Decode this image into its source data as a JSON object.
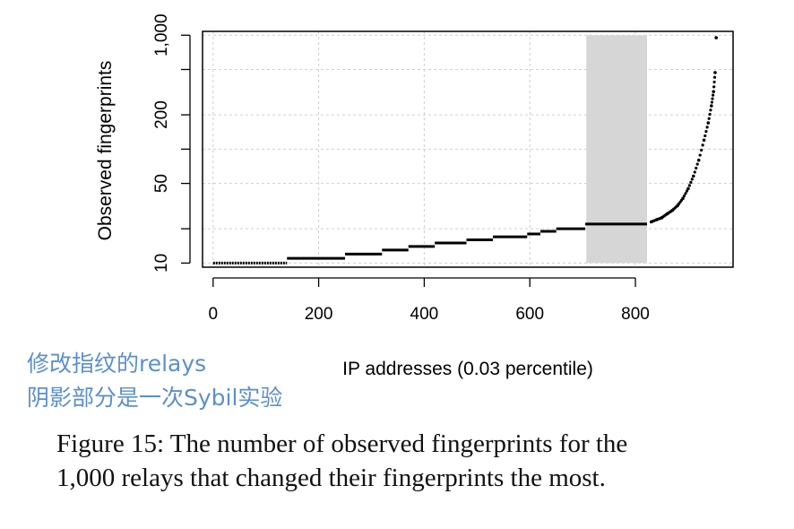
{
  "chart_data": {
    "type": "scatter",
    "xlabel": "IP addresses (0.03 percentile)",
    "ylabel": "Observed fingerprints",
    "xlim": [
      -20,
      985
    ],
    "ylim": [
      9.2,
      1080
    ],
    "y_scale": "log",
    "x_ticks": [
      0,
      200,
      400,
      600,
      800
    ],
    "x_tick_labels": [
      "0",
      "200",
      "400",
      "600",
      "800"
    ],
    "y_ticks": [
      10,
      20,
      50,
      100,
      200,
      500,
      1000
    ],
    "y_tick_labels": [
      "10",
      "",
      "50",
      "",
      "200",
      "",
      "1,000"
    ],
    "grid": true,
    "shaded_region": {
      "x": [
        707,
        822
      ]
    },
    "series": [
      {
        "segments": [
          {
            "x": [
              0,
              140
            ],
            "y": 10
          },
          {
            "x": [
              140,
              250
            ],
            "y": 11
          },
          {
            "x": [
              250,
              320
            ],
            "y": 12
          },
          {
            "x": [
              320,
              370
            ],
            "y": 13
          },
          {
            "x": [
              370,
              420
            ],
            "y": 14
          },
          {
            "x": [
              420,
              480
            ],
            "y": 15
          },
          {
            "x": [
              480,
              530
            ],
            "y": 16
          },
          {
            "x": [
              530,
              595
            ],
            "y": 17
          },
          {
            "x": [
              595,
              620
            ],
            "y": 18
          },
          {
            "x": [
              620,
              650
            ],
            "y": 19
          },
          {
            "x": [
              650,
              705
            ],
            "y": 20
          },
          {
            "x": [
              705,
              822
            ],
            "y": 22
          }
        ],
        "tail_points": [
          [
            830,
            23
          ],
          [
            840,
            24
          ],
          [
            850,
            25
          ],
          [
            860,
            27
          ],
          [
            870,
            29
          ],
          [
            880,
            32
          ],
          [
            890,
            37
          ],
          [
            900,
            45
          ],
          [
            910,
            58
          ],
          [
            920,
            80
          ],
          [
            930,
            120
          ],
          [
            938,
            170
          ],
          [
            944,
            240
          ],
          [
            948,
            320
          ],
          [
            951,
            470
          ],
          [
            953,
            950
          ]
        ]
      }
    ]
  },
  "annotations": {
    "line1": "修改指纹的relays",
    "line2": "阴影部分是一次Sybil实验"
  },
  "caption": {
    "line1": "Figure 15: The number of observed fingerprints for the",
    "line2": "1,000 relays that changed their fingerprints the most."
  }
}
